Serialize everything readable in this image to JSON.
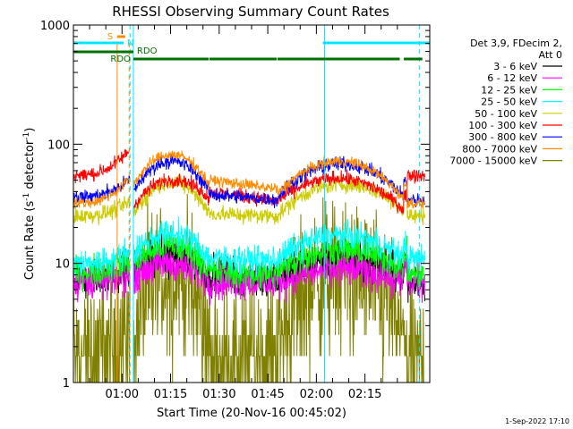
{
  "chart_data": {
    "type": "line",
    "title": "RHESSI Observing Summary Count Rates",
    "xlabel": "Start Time (20-Nov-16 00:45:02)",
    "ylabel_main": "Count Rate (s",
    "ylabel_exp1": "-1",
    "ylabel_mid": " detector",
    "ylabel_exp2": "-1",
    "ylabel_end": ")",
    "y_scale": "log",
    "ylim": [
      1,
      1000
    ],
    "xlim_minutes": [
      -15,
      95
    ],
    "y_ticks": [
      {
        "value": 1,
        "label": "1"
      },
      {
        "value": 10,
        "label": "10"
      },
      {
        "value": 100,
        "label": "100"
      },
      {
        "value": 1000,
        "label": "1000"
      }
    ],
    "x_ticks": [
      {
        "value": 0,
        "label": "01:00"
      },
      {
        "value": 15,
        "label": "01:15"
      },
      {
        "value": 30,
        "label": "01:30"
      },
      {
        "value": 45,
        "label": "01:45"
      },
      {
        "value": 60,
        "label": "02:00"
      },
      {
        "value": 75,
        "label": "02:15"
      }
    ],
    "legend_header": [
      "Det 3,9, FDecim 2,",
      "Att 0"
    ],
    "legend_position": "right",
    "series": [
      {
        "name": "3 - 6 keV",
        "color": "#000000",
        "key": "s1"
      },
      {
        "name": "6 - 12 keV",
        "color": "#ff00ff",
        "key": "s2"
      },
      {
        "name": "12 - 25 keV",
        "color": "#00ff00",
        "key": "s3"
      },
      {
        "name": "25 - 50 keV",
        "color": "#00ffff",
        "key": "s4"
      },
      {
        "name": "50 - 100 keV",
        "color": "#cccc00",
        "key": "s5"
      },
      {
        "name": "100 - 300 keV",
        "color": "#ff0000",
        "key": "s6"
      },
      {
        "name": "300 - 800 keV",
        "color": "#0000ff",
        "key": "s7"
      },
      {
        "name": "800 - 7000 keV",
        "color": "#ff8c00",
        "key": "s8"
      },
      {
        "name": "7000 - 15000 keV",
        "color": "#808000",
        "key": "s9"
      }
    ],
    "annotations": {
      "saa_label": "S",
      "night_label": "N",
      "rdo_label_top": "RDO",
      "rdo_label_bottom": "RDO",
      "saa_interval_minutes": [
        -1.5,
        1
      ],
      "night_intervals_minutes": [
        [
          -15,
          0.5
        ],
        [
          62,
          95
        ]
      ],
      "rdo_top_intervals_minutes": [
        [
          -15,
          3.5
        ]
      ],
      "rdo_bottom_intervals_minutes": [
        [
          3.5,
          27
        ],
        [
          27,
          48
        ],
        [
          48,
          86
        ],
        [
          87,
          93
        ]
      ],
      "vertical_solid_cyan_minutes": [
        -15,
        3.5,
        62.5
      ],
      "vertical_dashed_cyan_minutes": [
        2.2,
        91.5
      ],
      "vertical_orange_minutes": [
        -1.5
      ],
      "vertical_dashed_orange_minutes": [
        2.2
      ]
    },
    "footer_date": "1-Sep-2022 17:10"
  }
}
